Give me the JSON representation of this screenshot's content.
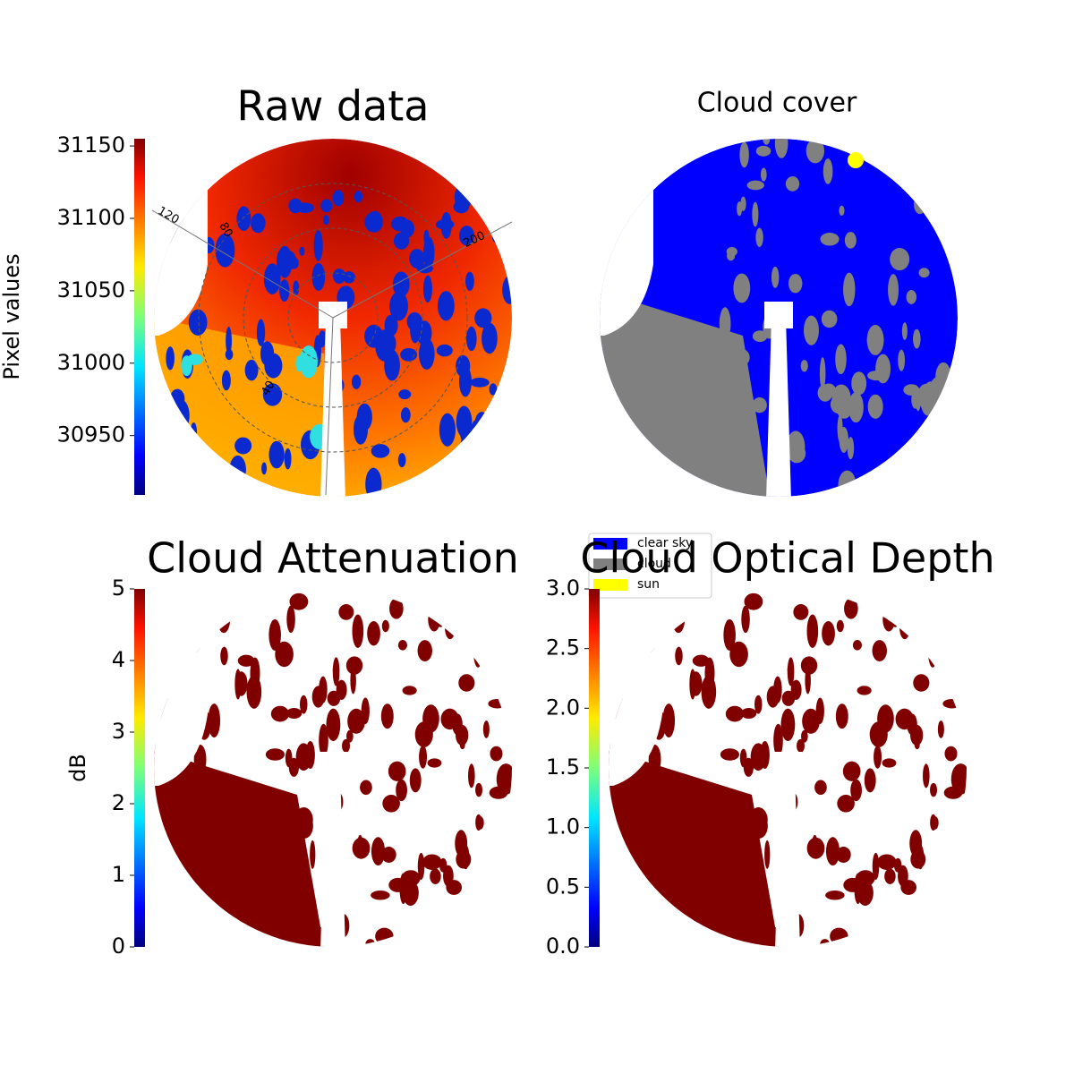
{
  "panels": [
    {
      "title": "Raw data",
      "colorbar": {
        "label": "Pixel values",
        "lim": [
          30909,
          31155
        ],
        "ticks": [
          30950,
          31000,
          31050,
          31100,
          31150
        ]
      },
      "polar_labels": [
        "120",
        "80",
        "40",
        "200"
      ]
    },
    {
      "title": "Cloud cover",
      "legend": [
        {
          "name": "clear sky",
          "color": "#0000ff"
        },
        {
          "name": "cloud",
          "color": "#808080"
        },
        {
          "name": "sun",
          "color": "#ffff00"
        }
      ]
    },
    {
      "title": "Cloud Attenuation",
      "colorbar": {
        "label": "dB",
        "lim": [
          0,
          5
        ],
        "ticks": [
          0,
          1,
          2,
          3,
          4,
          5
        ]
      }
    },
    {
      "title": "Cloud Optical Depth",
      "colorbar": {
        "lim": [
          0,
          3
        ],
        "ticks": [
          {
            "value": 0,
            "label": "0.0"
          },
          {
            "value": 0.5,
            "label": "0.5"
          },
          {
            "value": 1,
            "label": "1.0"
          },
          {
            "value": 1.5,
            "label": "1.5"
          },
          {
            "value": 2,
            "label": "2.0"
          },
          {
            "value": 2.5,
            "label": "2.5"
          },
          {
            "value": 3,
            "label": "3.0"
          }
        ]
      }
    }
  ]
}
